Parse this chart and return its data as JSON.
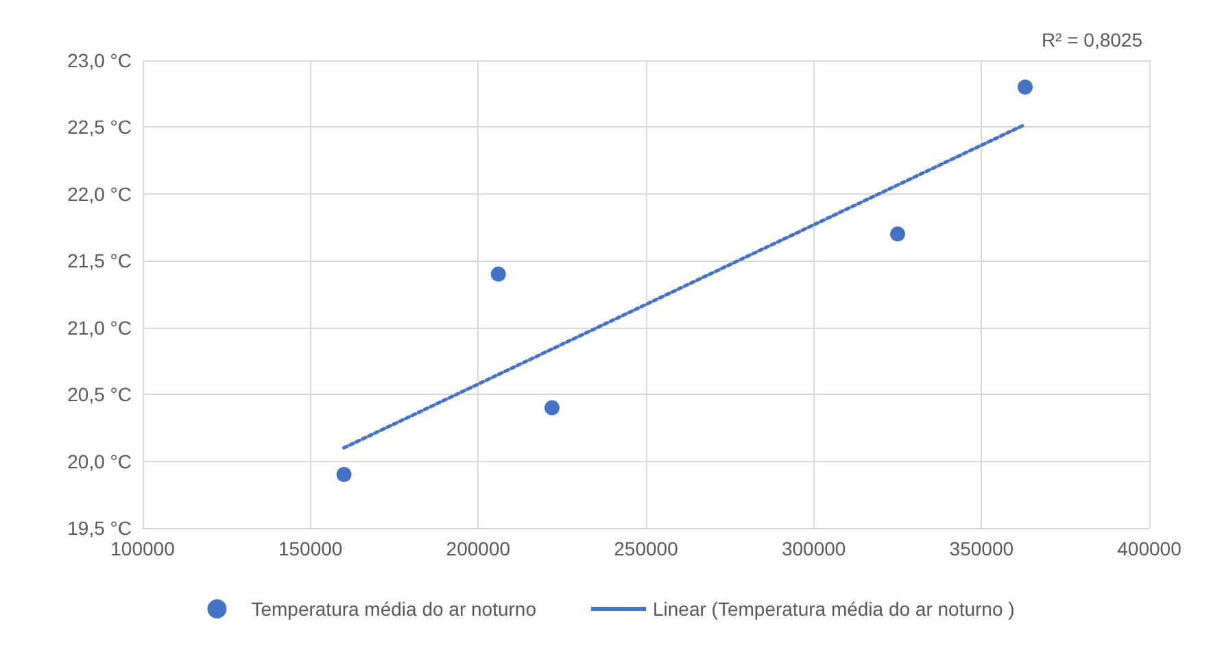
{
  "chart_data": {
    "type": "scatter",
    "xlim": [
      100000,
      400000
    ],
    "xticks": [
      100000,
      150000,
      200000,
      250000,
      300000,
      350000,
      400000
    ],
    "ylim": [
      19.5,
      23.0
    ],
    "yticks": [
      {
        "value": 19.5,
        "label": "19,5 °C"
      },
      {
        "value": 20.0,
        "label": "20,0 °C"
      },
      {
        "value": 20.5,
        "label": "20,5 °C"
      },
      {
        "value": 21.0,
        "label": "21,0 °C"
      },
      {
        "value": 21.5,
        "label": "21,5 °C"
      },
      {
        "value": 22.0,
        "label": "22,0 °C"
      },
      {
        "value": 22.5,
        "label": "22,5 °C"
      },
      {
        "value": 23.0,
        "label": "23,0 °C"
      }
    ],
    "grid": true,
    "legend": "bottom",
    "marker": "circle",
    "annotations": [
      "R² = 0,8025"
    ],
    "series": [
      {
        "name": "Temperatura média do ar noturno",
        "color": "#4472c4",
        "x": [
          160000,
          206000,
          222000,
          325000,
          363000
        ],
        "values": [
          19.9,
          21.4,
          20.4,
          21.7,
          22.8
        ]
      },
      {
        "name": "Linear (Temperatura média do ar noturno )",
        "type": "line",
        "color": "#4472c4",
        "line_style": "dotted",
        "marker": "none",
        "x": [
          160000,
          363000
        ],
        "values": [
          20.1,
          22.52
        ]
      }
    ]
  }
}
